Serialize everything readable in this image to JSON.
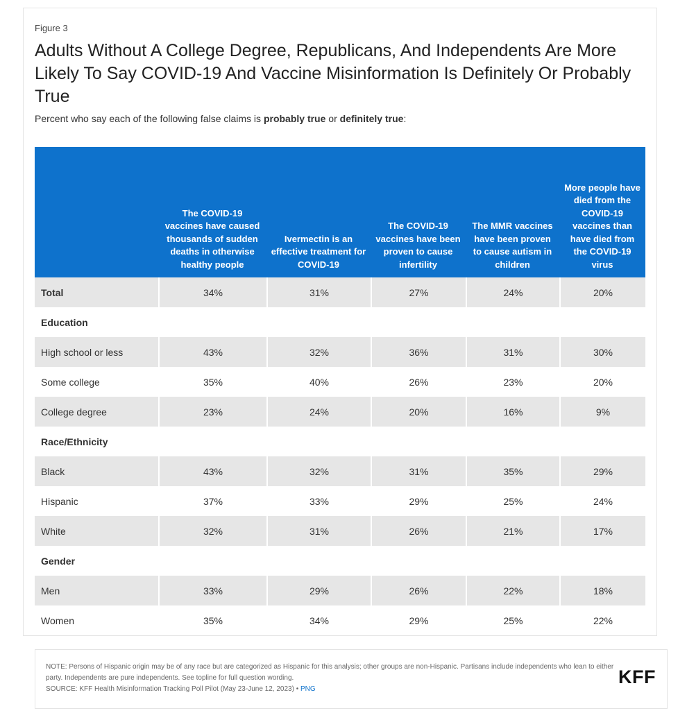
{
  "figure_label": "Figure 3",
  "title": "Adults Without A College Degree, Republicans, And Independents Are More Likely To Say COVID-19 And Vaccine Misinformation Is Definitely Or Probably True",
  "subtitle": {
    "part1": "Percent who say each of the following false claims is ",
    "bold1": "probably true",
    "part2": " or ",
    "bold2": "definitely true",
    "part3": ":"
  },
  "colors": {
    "header_bg": "#0e72cc",
    "row_shade": "#e6e6e6"
  },
  "chart_data": {
    "type": "table",
    "columns": [
      "",
      "The COVID-19 vaccines have caused thousands of sudden deaths in otherwise healthy people",
      "Ivermectin is an effective treatment for COVID-19",
      "The COVID-19 vaccines have been proven to cause infertility",
      "The MMR vaccines have been proven to cause autism in children",
      "More people have died from the COVID-19 vaccines than have died from the COVID-19 virus"
    ],
    "rows": [
      {
        "label": "Total",
        "kind": "total",
        "values": [
          "34%",
          "31%",
          "27%",
          "24%",
          "20%"
        ]
      },
      {
        "label": "Education",
        "kind": "group",
        "values": []
      },
      {
        "label": "High school or less",
        "kind": "data",
        "values": [
          "43%",
          "32%",
          "36%",
          "31%",
          "30%"
        ]
      },
      {
        "label": "Some college",
        "kind": "data",
        "values": [
          "35%",
          "40%",
          "26%",
          "23%",
          "20%"
        ]
      },
      {
        "label": "College degree",
        "kind": "data",
        "values": [
          "23%",
          "24%",
          "20%",
          "16%",
          "9%"
        ]
      },
      {
        "label": "Race/Ethnicity",
        "kind": "group",
        "values": []
      },
      {
        "label": "Black",
        "kind": "data",
        "values": [
          "43%",
          "32%",
          "31%",
          "35%",
          "29%"
        ]
      },
      {
        "label": "Hispanic",
        "kind": "data",
        "values": [
          "37%",
          "33%",
          "29%",
          "25%",
          "24%"
        ]
      },
      {
        "label": "White",
        "kind": "data",
        "values": [
          "32%",
          "31%",
          "26%",
          "21%",
          "17%"
        ]
      },
      {
        "label": "Gender",
        "kind": "group",
        "values": []
      },
      {
        "label": "Men",
        "kind": "data",
        "values": [
          "33%",
          "29%",
          "26%",
          "22%",
          "18%"
        ]
      },
      {
        "label": "Women",
        "kind": "data",
        "values": [
          "35%",
          "34%",
          "29%",
          "25%",
          "22%"
        ]
      }
    ]
  },
  "footer": {
    "note": "NOTE: Persons of Hispanic origin may be of any race but are categorized as Hispanic for this analysis; other groups are non-Hispanic. Partisans include independents who lean to either party. Independents are pure independents. See topline for full question wording.",
    "source": "SOURCE: KFF Health Misinformation Tracking Poll Pilot (May 23-June 12, 2023)",
    "separator": " • ",
    "png_link": "PNG",
    "logo": "KFF"
  }
}
